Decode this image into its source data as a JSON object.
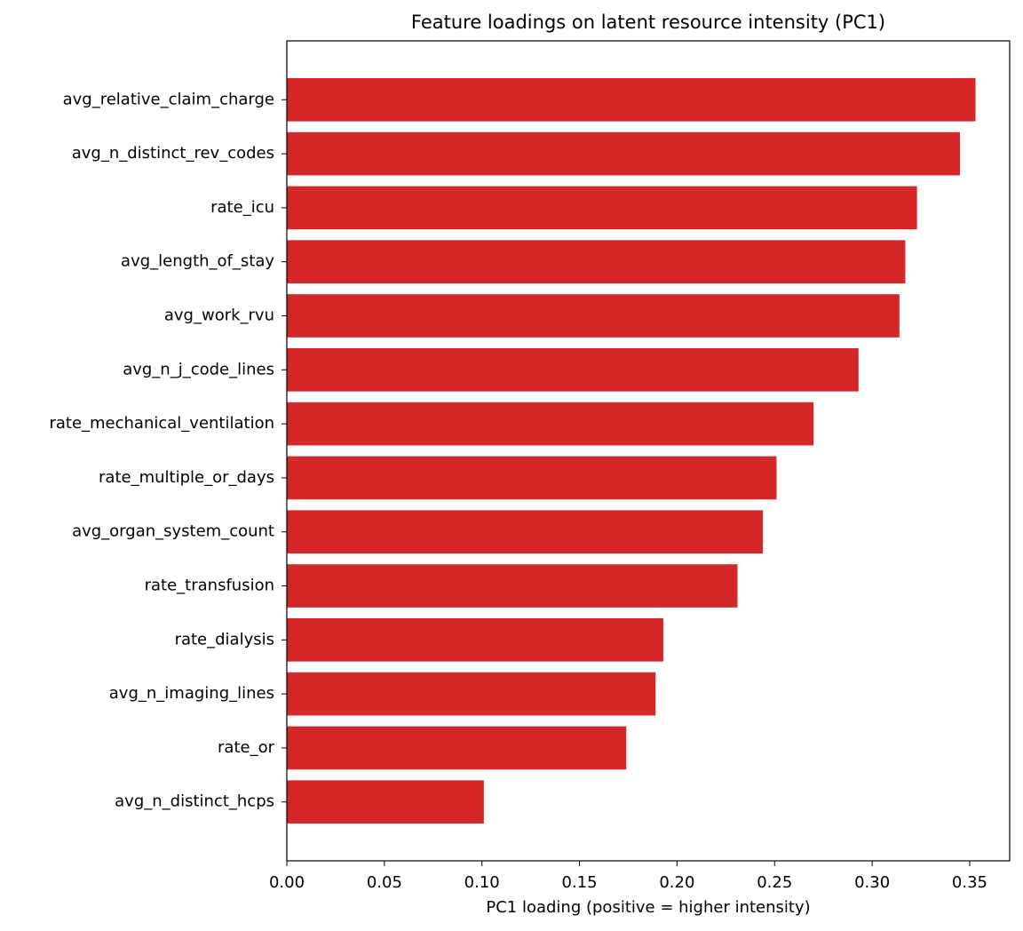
{
  "chart_data": {
    "type": "barh",
    "title": "Feature loadings on latent resource intensity (PC1)",
    "xlabel": "PC1 loading (positive = higher intensity)",
    "categories": [
      "avg_relative_claim_charge",
      "avg_n_distinct_rev_codes",
      "rate_icu",
      "avg_length_of_stay",
      "avg_work_rvu",
      "avg_n_j_code_lines",
      "rate_mechanical_ventilation",
      "rate_multiple_or_days",
      "avg_organ_system_count",
      "rate_transfusion",
      "rate_dialysis",
      "avg_n_imaging_lines",
      "rate_or",
      "avg_n_distinct_hcps"
    ],
    "values": [
      0.353,
      0.345,
      0.323,
      0.317,
      0.314,
      0.293,
      0.27,
      0.251,
      0.244,
      0.231,
      0.193,
      0.189,
      0.174,
      0.101
    ],
    "color": "#d62728",
    "xlim": [
      0,
      0.3705
    ],
    "xticks": [
      {
        "value": 0,
        "label": "0.00"
      },
      {
        "value": 0.05,
        "label": "0.05"
      },
      {
        "value": 0.1,
        "label": "0.10"
      },
      {
        "value": 0.15,
        "label": "0.15"
      },
      {
        "value": 0.2,
        "label": "0.20"
      },
      {
        "value": 0.25,
        "label": "0.25"
      },
      {
        "value": 0.3,
        "label": "0.30"
      },
      {
        "value": 0.35,
        "label": "0.35"
      }
    ],
    "grid": false
  }
}
